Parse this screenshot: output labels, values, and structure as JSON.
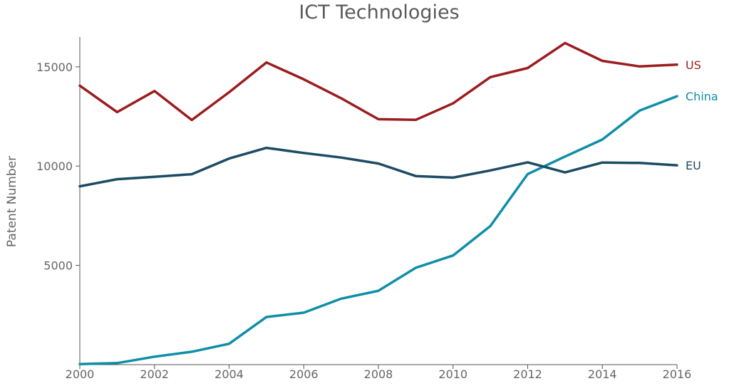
{
  "chart_data": {
    "type": "line",
    "title": "ICT Technologies",
    "xlabel": "",
    "ylabel": "Patent Number",
    "x": [
      2000,
      2001,
      2002,
      2003,
      2004,
      2005,
      2006,
      2007,
      2008,
      2009,
      2010,
      2011,
      2012,
      2013,
      2014,
      2015,
      2016
    ],
    "xlim": [
      2000,
      2016
    ],
    "ylim": [
      0,
      16500
    ],
    "x_ticks": [
      "2000",
      "2002",
      "2004",
      "2006",
      "2008",
      "2010",
      "2012",
      "2014",
      "2016"
    ],
    "y_ticks": [
      "5000",
      "10000",
      "15000"
    ],
    "grid": false,
    "legend": "inline labels at line ends",
    "series": [
      {
        "name": "US",
        "color": "#9b1c1f",
        "values": [
          14050,
          12720,
          13780,
          12320,
          13720,
          15220,
          14370,
          13420,
          12360,
          12330,
          13160,
          14480,
          14940,
          16200,
          15300,
          15020,
          15110
        ]
      },
      {
        "name": "China",
        "color": "#0f8ea8",
        "values": [
          30,
          80,
          400,
          650,
          1050,
          2400,
          2620,
          3320,
          3720,
          4880,
          5500,
          6980,
          9600,
          10480,
          11340,
          12800,
          13520
        ]
      },
      {
        "name": "EU",
        "color": "#1c4b63",
        "values": [
          8980,
          9340,
          9460,
          9590,
          10380,
          10920,
          10660,
          10430,
          10130,
          9500,
          9420,
          9780,
          10190,
          9680,
          10180,
          10160,
          10040
        ]
      }
    ]
  }
}
